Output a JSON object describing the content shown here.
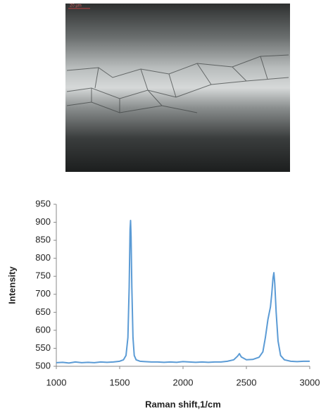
{
  "image": {
    "scale_label": "20 µm"
  },
  "chart_data": {
    "type": "line",
    "x_label": "Raman shift,1/cm",
    "y_label": "Intensity",
    "x": [
      1000,
      1050,
      1100,
      1150,
      1200,
      1250,
      1300,
      1350,
      1400,
      1450,
      1500,
      1530,
      1550,
      1565,
      1575,
      1582,
      1586,
      1590,
      1596,
      1605,
      1615,
      1630,
      1660,
      1700,
      1750,
      1800,
      1850,
      1900,
      1950,
      2000,
      2050,
      2100,
      2150,
      2200,
      2250,
      2300,
      2350,
      2400,
      2430,
      2445,
      2460,
      2500,
      2550,
      2600,
      2630,
      2650,
      2670,
      2690,
      2700,
      2710,
      2717,
      2724,
      2735,
      2750,
      2770,
      2800,
      2850,
      2900,
      2950,
      3000
    ],
    "values": [
      510,
      511,
      509,
      512,
      510,
      511,
      510,
      512,
      511,
      512,
      514,
      518,
      530,
      580,
      720,
      880,
      905,
      860,
      720,
      580,
      530,
      518,
      514,
      513,
      512,
      512,
      511,
      512,
      511,
      513,
      512,
      511,
      512,
      511,
      512,
      512,
      514,
      518,
      528,
      535,
      526,
      518,
      519,
      525,
      540,
      580,
      630,
      665,
      700,
      745,
      760,
      730,
      650,
      570,
      530,
      518,
      514,
      513,
      514,
      514
    ],
    "color": "#5b9bd5",
    "xlim": [
      1000,
      3000
    ],
    "xticks": [
      1000,
      1500,
      2000,
      2500,
      3000
    ],
    "ylim": [
      500,
      950
    ],
    "yticks": [
      500,
      550,
      600,
      650,
      700,
      750,
      800,
      850,
      900,
      950
    ],
    "grid": false
  }
}
